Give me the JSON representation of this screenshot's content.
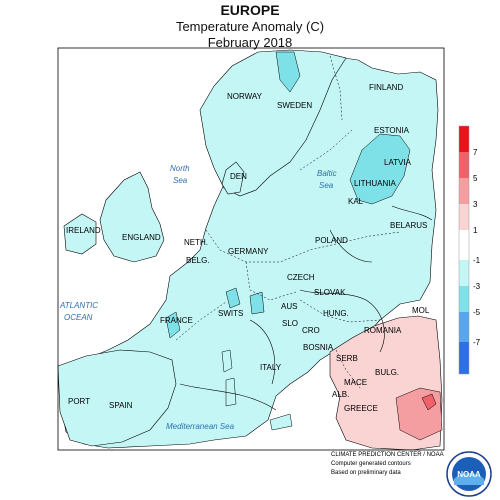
{
  "header": {
    "region": "EUROPE",
    "variable": "Temperature Anomaly (C)",
    "period": "February 2018"
  },
  "legend": {
    "ticks": [
      "7",
      "5",
      "3",
      "1",
      "-1",
      "-3",
      "-5",
      "-7"
    ],
    "colors": {
      "c7": "#e8141a",
      "c5": "#f0616a",
      "c3": "#f59ea2",
      "c1": "#fad3d3",
      "c0": "#ffffff",
      "cm1": "#c4f6f6",
      "cm3": "#7fe1e8",
      "cm5": "#5aa6ec",
      "cm7": "#2e6fe6"
    }
  },
  "labels": {
    "countries": {
      "norway": "NORWAY",
      "sweden": "SWEDEN",
      "finland": "FINLAND",
      "estonia": "ESTONIA",
      "latvia": "LATVIA",
      "lithuania": "LITHUANIA",
      "kal": "KAL",
      "belarus": "BELARUS",
      "den": "DEN",
      "ireland": "IRELAND",
      "england": "ENGLAND",
      "neth": "NETH.",
      "belg": "BELG.",
      "germany": "GERMANY",
      "poland": "POLAND",
      "czech": "CZECH",
      "slovak": "SLOVAK",
      "hung": "HUNG.",
      "aus": "AUS",
      "swits": "SWITS",
      "slo": "SLO",
      "cro": "CRO",
      "bosnia": "BOSNIA",
      "serb": "SERB",
      "romania": "ROMANIA",
      "mol": "MOL",
      "bulg": "BULG.",
      "mace": "MACE",
      "alb": "ALB.",
      "greece": "GREECE",
      "italy": "ITALY",
      "france": "FRANCE",
      "spain": "SPAIN",
      "port": "PORT"
    },
    "seas": {
      "north_1": "North",
      "north_2": "Sea",
      "baltic_1": "Baltic",
      "baltic_2": "Sea",
      "atlantic_1": "ATLANTIC",
      "atlantic_2": "OCEAN",
      "mediterranean": "Mediterranean Sea"
    }
  },
  "credits": {
    "line1": "CLIMATE PREDICTION CENTER / NOAA",
    "line2": "Computer generated contours",
    "line3": "Based on preliminary data"
  },
  "logo": {
    "text": "NOAA"
  }
}
